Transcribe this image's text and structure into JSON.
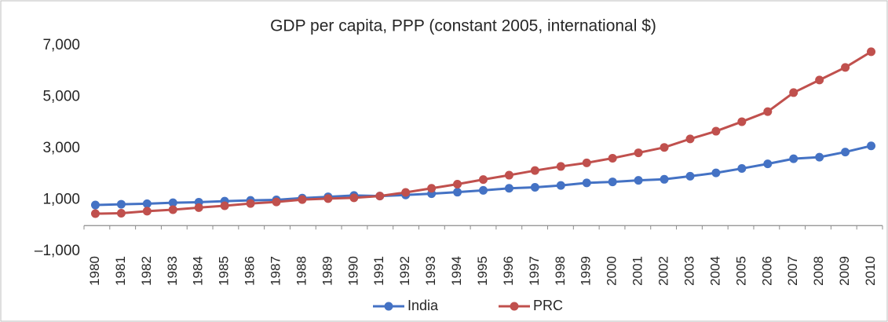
{
  "chart_data": {
    "type": "line",
    "title": "GDP per capita, PPP (constant 2005, international $)",
    "categories": [
      "1980",
      "1981",
      "1982",
      "1983",
      "1984",
      "1985",
      "1986",
      "1987",
      "1988",
      "1989",
      "1990",
      "1991",
      "1992",
      "1993",
      "1994",
      "1995",
      "1996",
      "1997",
      "1998",
      "1999",
      "2000",
      "2001",
      "2002",
      "2003",
      "2004",
      "2005",
      "2006",
      "2007",
      "2008",
      "2009",
      "2010"
    ],
    "series": [
      {
        "name": "India",
        "color": "#4472c4",
        "values": [
          800,
          830,
          850,
          890,
          910,
          950,
          980,
          1000,
          1070,
          1120,
          1170,
          1150,
          1190,
          1240,
          1300,
          1370,
          1450,
          1490,
          1560,
          1660,
          1700,
          1760,
          1800,
          1920,
          2050,
          2220,
          2400,
          2600,
          2660,
          2860,
          3100
        ]
      },
      {
        "name": "PRC",
        "color": "#c0504d",
        "values": [
          465,
          480,
          560,
          620,
          700,
          770,
          860,
          920,
          1010,
          1050,
          1080,
          1150,
          1290,
          1450,
          1610,
          1790,
          1960,
          2140,
          2300,
          2440,
          2620,
          2830,
          3040,
          3370,
          3670,
          4040,
          4430,
          5170,
          5660,
          6150,
          6760
        ]
      }
    ],
    "ylim": [
      -1000,
      7000
    ],
    "yticks": [
      {
        "value": -1000,
        "label": "–1,000"
      },
      {
        "value": 1000,
        "label": "1,000"
      },
      {
        "value": 3000,
        "label": "3,000"
      },
      {
        "value": 5000,
        "label": "5,000"
      },
      {
        "value": 7000,
        "label": "7,000"
      }
    ],
    "grid": false,
    "legend": "bottom"
  }
}
